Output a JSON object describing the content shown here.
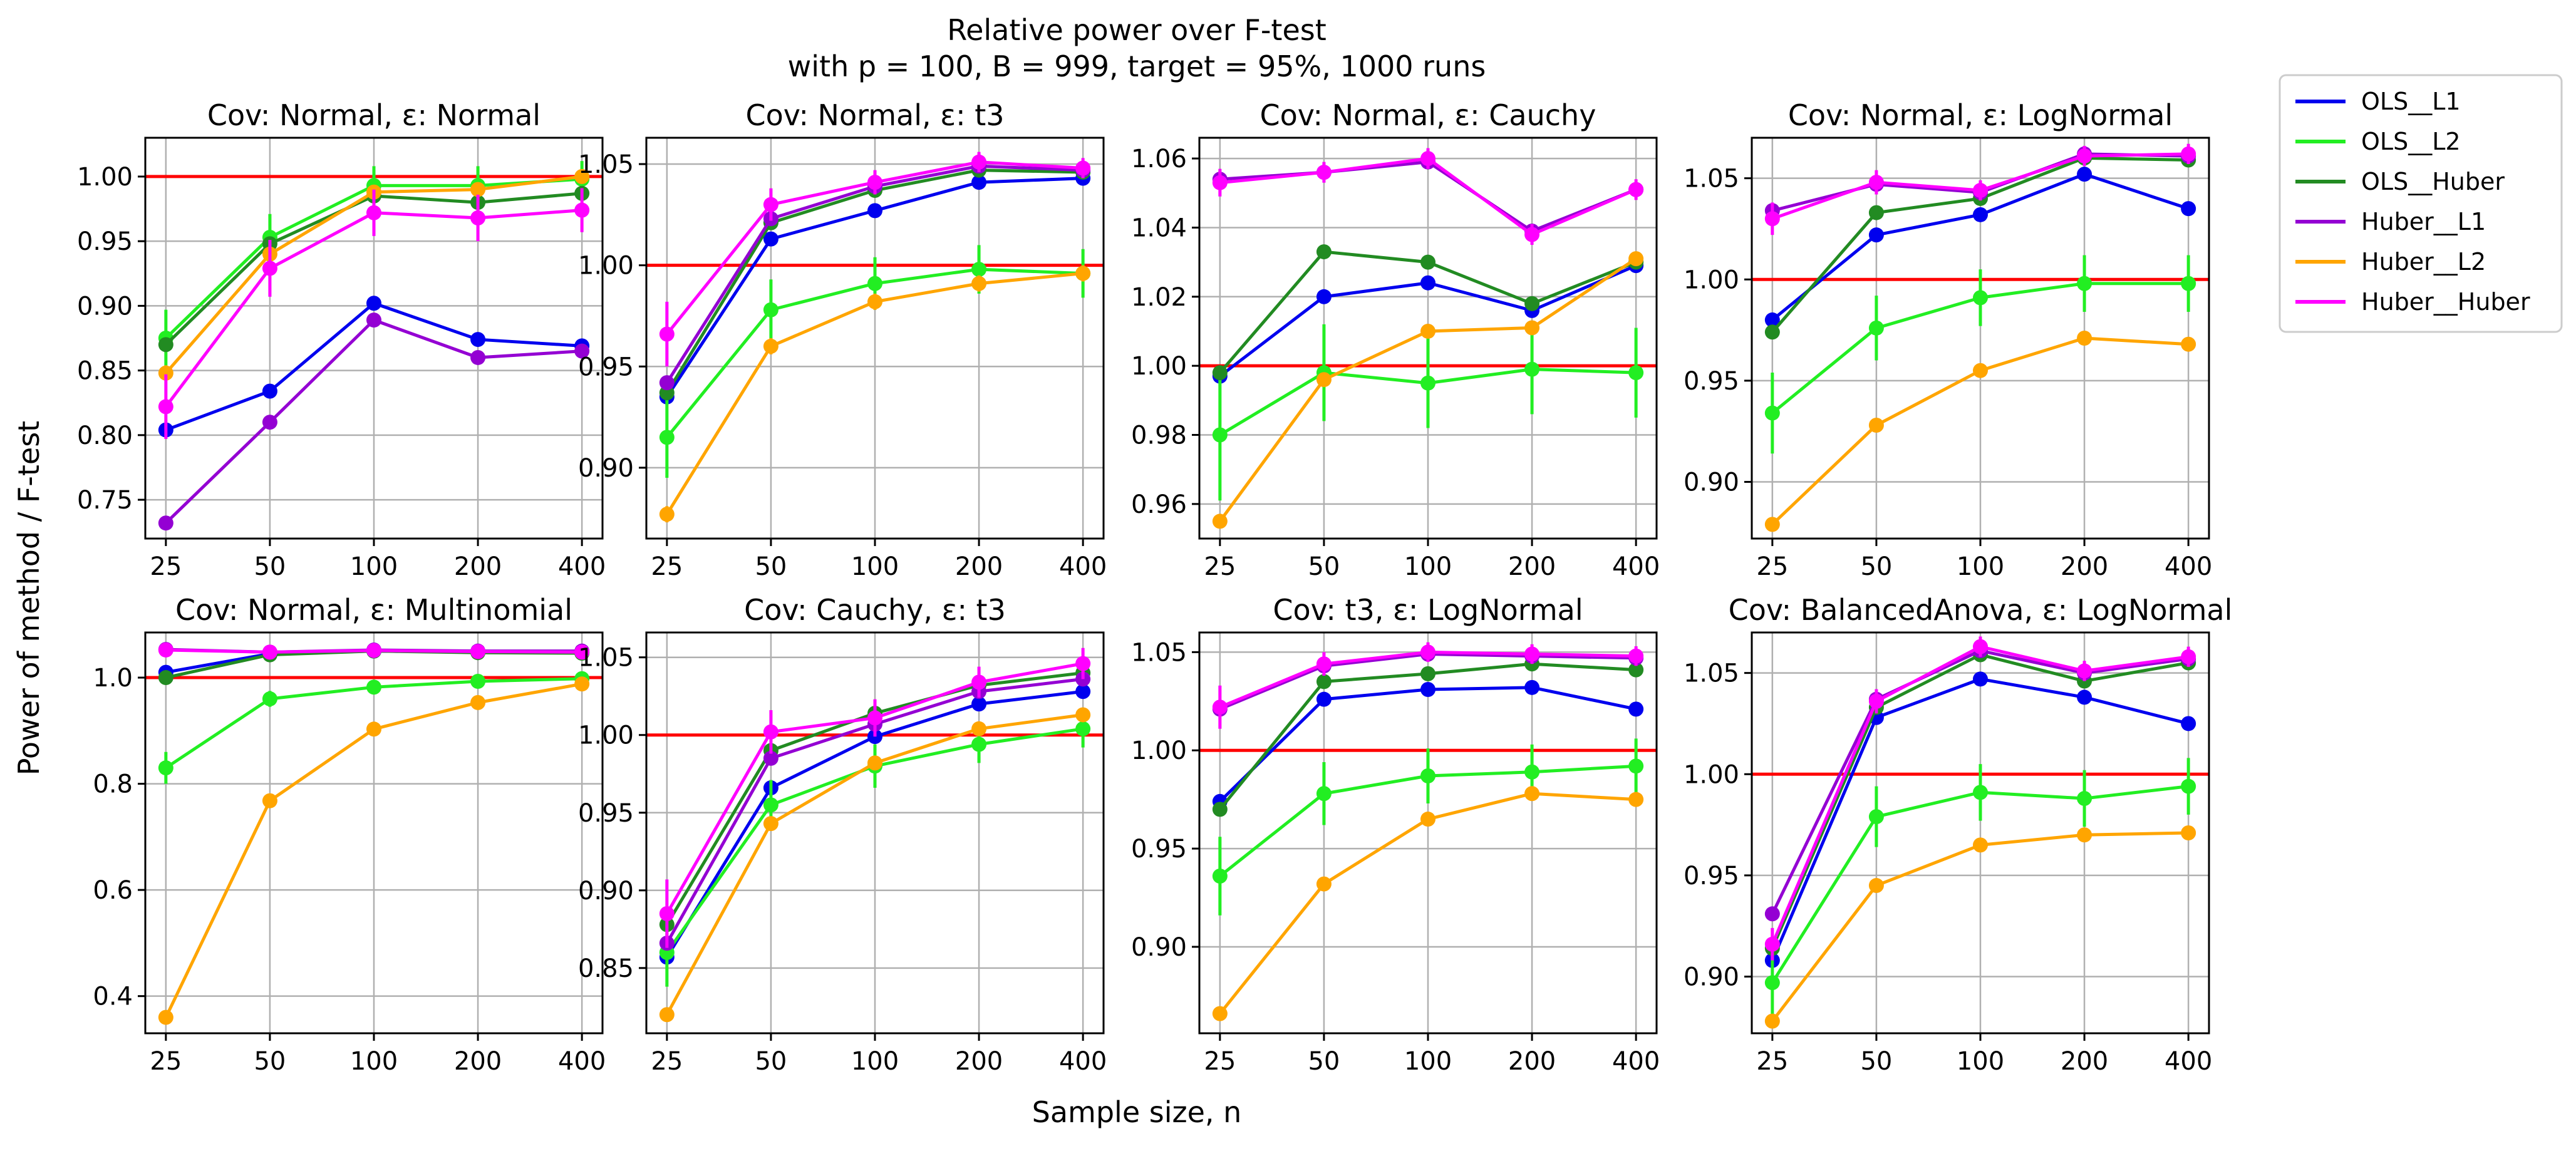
{
  "figure": {
    "title_line1": "Relative power over F-test",
    "title_line2": "with p = 100, B = 999, target = 95%, 1000 runs",
    "xlabel": "Sample size, n",
    "ylabel": "Power of method / F-test",
    "reference_color": "#ff0000",
    "reference_value": 1.0,
    "grid": true
  },
  "legend": {
    "placement": "outside-top-right",
    "entries": [
      {
        "name": "OLS__L1",
        "color": "#0000ee"
      },
      {
        "name": "OLS__L2",
        "color": "#22ee22"
      },
      {
        "name": "OLS__Huber",
        "color": "#228b22"
      },
      {
        "name": "Huber__L1",
        "color": "#9400d3"
      },
      {
        "name": "Huber__L2",
        "color": "#ffa500"
      },
      {
        "name": "Huber__Huber",
        "color": "#ff00ff"
      }
    ]
  },
  "chart_data": [
    {
      "type": "line",
      "title": "Cov: Normal, ε: Normal",
      "categories": [
        "25",
        "50",
        "100",
        "200",
        "400"
      ],
      "ylim": [
        0.72,
        1.03
      ],
      "yticks": [
        0.75,
        0.8,
        0.85,
        0.9,
        0.95,
        1.0
      ],
      "yformat": 2,
      "series": [
        {
          "name": "OLS__L1",
          "values": [
            0.804,
            0.834,
            0.902,
            0.874,
            0.869
          ],
          "err": [
            0.003,
            0.003,
            0.003,
            0.003,
            0.003
          ]
        },
        {
          "name": "OLS__L2",
          "values": [
            0.875,
            0.953,
            0.993,
            0.993,
            0.998
          ],
          "err": [
            0.022,
            0.018,
            0.015,
            0.015,
            0.014
          ]
        },
        {
          "name": "OLS__Huber",
          "values": [
            0.87,
            0.948,
            0.985,
            0.98,
            0.987
          ],
          "err": [
            0.004,
            0.004,
            0.004,
            0.004,
            0.004
          ]
        },
        {
          "name": "Huber__L1",
          "values": [
            0.732,
            0.81,
            0.889,
            0.86,
            0.865
          ],
          "err": [
            0.003,
            0.003,
            0.003,
            0.003,
            0.003
          ]
        },
        {
          "name": "Huber__L2",
          "values": [
            0.848,
            0.94,
            0.988,
            0.99,
            1.0
          ],
          "err": [
            0.006,
            0.006,
            0.005,
            0.005,
            0.005
          ]
        },
        {
          "name": "Huber__Huber",
          "values": [
            0.822,
            0.929,
            0.972,
            0.968,
            0.974
          ],
          "err": [
            0.025,
            0.022,
            0.018,
            0.018,
            0.017
          ]
        }
      ]
    },
    {
      "type": "line",
      "title": "Cov: Normal, ε: t3",
      "categories": [
        "25",
        "50",
        "100",
        "200",
        "400"
      ],
      "ylim": [
        0.865,
        1.063
      ],
      "yticks": [
        0.9,
        0.95,
        1.0,
        1.05
      ],
      "yformat": 2,
      "series": [
        {
          "name": "OLS__L1",
          "values": [
            0.935,
            1.013,
            1.027,
            1.041,
            1.043
          ],
          "err": [
            0.003,
            0.003,
            0.003,
            0.003,
            0.003
          ]
        },
        {
          "name": "OLS__L2",
          "values": [
            0.915,
            0.978,
            0.991,
            0.998,
            0.996
          ],
          "err": [
            0.02,
            0.015,
            0.013,
            0.012,
            0.012
          ]
        },
        {
          "name": "OLS__Huber",
          "values": [
            0.937,
            1.021,
            1.037,
            1.047,
            1.046
          ],
          "err": [
            0.003,
            0.003,
            0.003,
            0.003,
            0.003
          ]
        },
        {
          "name": "Huber__L1",
          "values": [
            0.942,
            1.023,
            1.039,
            1.049,
            1.047
          ],
          "err": [
            0.003,
            0.003,
            0.003,
            0.003,
            0.003
          ]
        },
        {
          "name": "Huber__L2",
          "values": [
            0.877,
            0.96,
            0.982,
            0.991,
            0.996
          ],
          "err": [
            0.004,
            0.004,
            0.004,
            0.004,
            0.004
          ]
        },
        {
          "name": "Huber__Huber",
          "values": [
            0.966,
            1.03,
            1.041,
            1.051,
            1.048
          ],
          "err": [
            0.016,
            0.008,
            0.006,
            0.005,
            0.005
          ]
        }
      ]
    },
    {
      "type": "line",
      "title": "Cov: Normal, ε: Cauchy",
      "categories": [
        "25",
        "50",
        "100",
        "200",
        "400"
      ],
      "ylim": [
        0.95,
        1.066
      ],
      "yticks": [
        0.96,
        0.98,
        1.0,
        1.02,
        1.04,
        1.06
      ],
      "yformat": 2,
      "series": [
        {
          "name": "OLS__L1",
          "values": [
            0.997,
            1.02,
            1.024,
            1.016,
            1.029
          ],
          "err": [
            0.002,
            0.002,
            0.002,
            0.002,
            0.002
          ]
        },
        {
          "name": "OLS__L2",
          "values": [
            0.98,
            0.998,
            0.995,
            0.999,
            0.998
          ],
          "err": [
            0.019,
            0.014,
            0.013,
            0.013,
            0.013
          ]
        },
        {
          "name": "OLS__Huber",
          "values": [
            0.998,
            1.033,
            1.03,
            1.018,
            1.03
          ],
          "err": [
            0.002,
            0.002,
            0.002,
            0.002,
            0.002
          ]
        },
        {
          "name": "Huber__L1",
          "values": [
            1.054,
            1.056,
            1.059,
            1.039,
            1.051
          ],
          "err": [
            0.002,
            0.002,
            0.002,
            0.002,
            0.002
          ]
        },
        {
          "name": "Huber__L2",
          "values": [
            0.955,
            0.996,
            1.01,
            1.011,
            1.031
          ],
          "err": [
            0.002,
            0.002,
            0.002,
            0.002,
            0.002
          ]
        },
        {
          "name": "Huber__Huber",
          "values": [
            1.053,
            1.056,
            1.06,
            1.038,
            1.051
          ],
          "err": [
            0.004,
            0.003,
            0.003,
            0.003,
            0.003
          ]
        }
      ]
    },
    {
      "type": "line",
      "title": "Cov: Normal, ε: LogNormal",
      "categories": [
        "25",
        "50",
        "100",
        "200",
        "400"
      ],
      "ylim": [
        0.872,
        1.07
      ],
      "yticks": [
        0.9,
        0.95,
        1.0,
        1.05
      ],
      "yformat": 2,
      "series": [
        {
          "name": "OLS__L1",
          "values": [
            0.98,
            1.022,
            1.032,
            1.052,
            1.035
          ],
          "err": [
            0.003,
            0.003,
            0.003,
            0.003,
            0.003
          ]
        },
        {
          "name": "OLS__L2",
          "values": [
            0.934,
            0.976,
            0.991,
            0.998,
            0.998
          ],
          "err": [
            0.02,
            0.016,
            0.014,
            0.014,
            0.014
          ]
        },
        {
          "name": "OLS__Huber",
          "values": [
            0.974,
            1.033,
            1.04,
            1.06,
            1.059
          ],
          "err": [
            0.003,
            0.003,
            0.003,
            0.003,
            0.003
          ]
        },
        {
          "name": "Huber__L1",
          "values": [
            1.034,
            1.047,
            1.043,
            1.062,
            1.061
          ],
          "err": [
            0.003,
            0.003,
            0.003,
            0.003,
            0.003
          ]
        },
        {
          "name": "Huber__L2",
          "values": [
            0.879,
            0.928,
            0.955,
            0.971,
            0.968
          ],
          "err": [
            0.003,
            0.003,
            0.003,
            0.003,
            0.003
          ]
        },
        {
          "name": "Huber__Huber",
          "values": [
            1.03,
            1.048,
            1.044,
            1.061,
            1.062
          ],
          "err": [
            0.008,
            0.006,
            0.005,
            0.005,
            0.005
          ]
        }
      ]
    },
    {
      "type": "line",
      "title": "Cov: Normal, ε: Multinomial",
      "categories": [
        "25",
        "50",
        "100",
        "200",
        "400"
      ],
      "ylim": [
        0.33,
        1.085
      ],
      "yticks": [
        0.4,
        0.6,
        0.8,
        1.0
      ],
      "yformat": 1,
      "series": [
        {
          "name": "OLS__L1",
          "values": [
            1.01,
            1.045,
            1.05,
            1.048,
            1.047
          ],
          "err": [
            0.005,
            0.005,
            0.005,
            0.005,
            0.005
          ]
        },
        {
          "name": "OLS__L2",
          "values": [
            0.83,
            0.96,
            0.982,
            0.993,
            0.998
          ],
          "err": [
            0.03,
            0.015,
            0.012,
            0.01,
            0.01
          ]
        },
        {
          "name": "OLS__Huber",
          "values": [
            1.0,
            1.043,
            1.05,
            1.047,
            1.046
          ],
          "err": [
            0.005,
            0.005,
            0.005,
            0.005,
            0.005
          ]
        },
        {
          "name": "Huber__L1",
          "values": [
            1.053,
            1.048,
            1.052,
            1.05,
            1.05
          ],
          "err": [
            0.005,
            0.005,
            0.005,
            0.005,
            0.005
          ]
        },
        {
          "name": "Huber__L2",
          "values": [
            0.36,
            0.768,
            0.903,
            0.953,
            0.988
          ],
          "err": [
            0.008,
            0.008,
            0.008,
            0.008,
            0.008
          ]
        },
        {
          "name": "Huber__Huber",
          "values": [
            1.052,
            1.048,
            1.051,
            1.049,
            1.048
          ],
          "err": [
            0.008,
            0.006,
            0.006,
            0.006,
            0.006
          ]
        }
      ]
    },
    {
      "type": "line",
      "title": "Cov: Cauchy, ε: t3",
      "categories": [
        "25",
        "50",
        "100",
        "200",
        "400"
      ],
      "ylim": [
        0.808,
        1.066
      ],
      "yticks": [
        0.85,
        0.9,
        0.95,
        1.0,
        1.05
      ],
      "yformat": 2,
      "series": [
        {
          "name": "OLS__L1",
          "values": [
            0.857,
            0.966,
            0.999,
            1.02,
            1.028
          ],
          "err": [
            0.004,
            0.004,
            0.004,
            0.004,
            0.004
          ]
        },
        {
          "name": "OLS__L2",
          "values": [
            0.86,
            0.955,
            0.98,
            0.994,
            1.004
          ],
          "err": [
            0.022,
            0.016,
            0.014,
            0.012,
            0.012
          ]
        },
        {
          "name": "OLS__Huber",
          "values": [
            0.878,
            0.99,
            1.014,
            1.032,
            1.04
          ],
          "err": [
            0.004,
            0.004,
            0.004,
            0.004,
            0.004
          ]
        },
        {
          "name": "Huber__L1",
          "values": [
            0.866,
            0.985,
            1.007,
            1.028,
            1.036
          ],
          "err": [
            0.004,
            0.004,
            0.004,
            0.004,
            0.004
          ]
        },
        {
          "name": "Huber__L2",
          "values": [
            0.82,
            0.943,
            0.982,
            1.004,
            1.013
          ],
          "err": [
            0.004,
            0.004,
            0.004,
            0.004,
            0.004
          ]
        },
        {
          "name": "Huber__Huber",
          "values": [
            0.885,
            1.002,
            1.011,
            1.034,
            1.046
          ],
          "err": [
            0.022,
            0.014,
            0.012,
            0.01,
            0.01
          ]
        }
      ]
    },
    {
      "type": "line",
      "title": "Cov: t3, ε: LogNormal",
      "categories": [
        "25",
        "50",
        "100",
        "200",
        "400"
      ],
      "ylim": [
        0.856,
        1.06
      ],
      "yticks": [
        0.9,
        0.95,
        1.0,
        1.05
      ],
      "yformat": 2,
      "series": [
        {
          "name": "OLS__L1",
          "values": [
            0.974,
            1.026,
            1.031,
            1.032,
            1.021
          ],
          "err": [
            0.003,
            0.003,
            0.003,
            0.003,
            0.003
          ]
        },
        {
          "name": "OLS__L2",
          "values": [
            0.936,
            0.978,
            0.987,
            0.989,
            0.992
          ],
          "err": [
            0.02,
            0.016,
            0.014,
            0.014,
            0.014
          ]
        },
        {
          "name": "OLS__Huber",
          "values": [
            0.97,
            1.035,
            1.039,
            1.044,
            1.041
          ],
          "err": [
            0.003,
            0.003,
            0.003,
            0.003,
            0.003
          ]
        },
        {
          "name": "Huber__L1",
          "values": [
            1.021,
            1.043,
            1.049,
            1.048,
            1.047
          ],
          "err": [
            0.003,
            0.003,
            0.003,
            0.003,
            0.003
          ]
        },
        {
          "name": "Huber__L2",
          "values": [
            0.866,
            0.932,
            0.965,
            0.978,
            0.975
          ],
          "err": [
            0.003,
            0.003,
            0.003,
            0.003,
            0.003
          ]
        },
        {
          "name": "Huber__Huber",
          "values": [
            1.022,
            1.044,
            1.05,
            1.049,
            1.048
          ],
          "err": [
            0.011,
            0.006,
            0.005,
            0.005,
            0.005
          ]
        }
      ]
    },
    {
      "type": "line",
      "title": "Cov: BalancedAnova, ε: LogNormal",
      "categories": [
        "25",
        "50",
        "100",
        "200",
        "400"
      ],
      "ylim": [
        0.872,
        1.07
      ],
      "yticks": [
        0.9,
        0.95,
        1.0,
        1.05
      ],
      "yformat": 2,
      "series": [
        {
          "name": "OLS__L1",
          "values": [
            0.908,
            1.028,
            1.047,
            1.038,
            1.025
          ],
          "err": [
            0.003,
            0.003,
            0.003,
            0.003,
            0.003
          ]
        },
        {
          "name": "OLS__L2",
          "values": [
            0.897,
            0.979,
            0.991,
            0.988,
            0.994
          ],
          "err": [
            0.02,
            0.015,
            0.014,
            0.014,
            0.014
          ]
        },
        {
          "name": "OLS__Huber",
          "values": [
            0.914,
            1.033,
            1.059,
            1.046,
            1.055
          ],
          "err": [
            0.003,
            0.003,
            0.003,
            0.003,
            0.003
          ]
        },
        {
          "name": "Huber__L1",
          "values": [
            0.931,
            1.037,
            1.061,
            1.05,
            1.057
          ],
          "err": [
            0.003,
            0.003,
            0.003,
            0.003,
            0.003
          ]
        },
        {
          "name": "Huber__L2",
          "values": [
            0.878,
            0.945,
            0.965,
            0.97,
            0.971
          ],
          "err": [
            0.003,
            0.003,
            0.003,
            0.003,
            0.003
          ]
        },
        {
          "name": "Huber__Huber",
          "values": [
            0.916,
            1.036,
            1.063,
            1.051,
            1.058
          ],
          "err": [
            0.008,
            0.006,
            0.005,
            0.005,
            0.005
          ]
        }
      ]
    }
  ]
}
